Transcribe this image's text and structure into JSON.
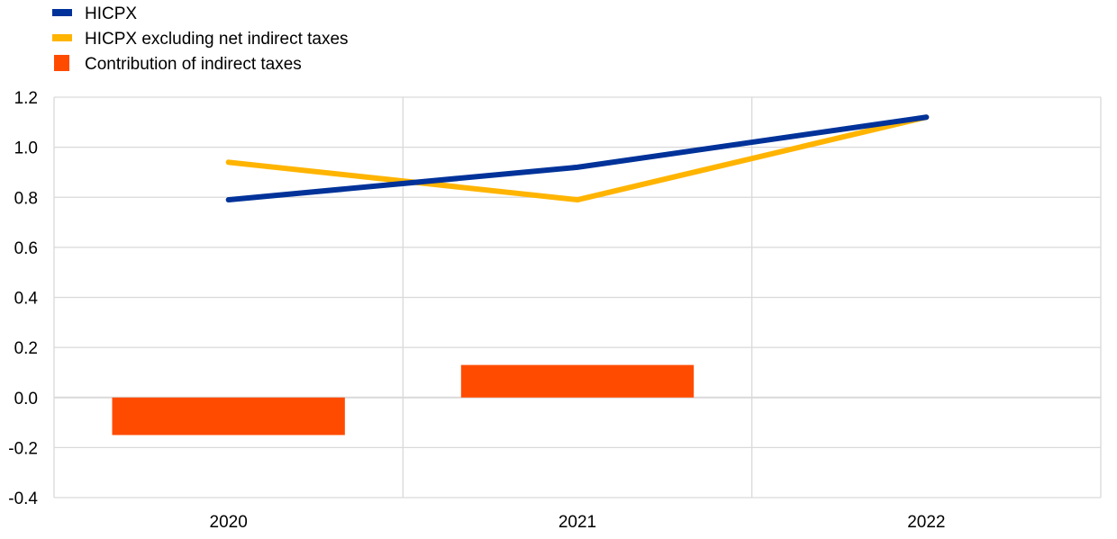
{
  "chart_data": {
    "type": "bar",
    "title": "",
    "xlabel": "",
    "ylabel": "",
    "categories": [
      "2020",
      "2021",
      "2022"
    ],
    "ylim": [
      -0.4,
      1.2
    ],
    "yticks": [
      1.2,
      1.0,
      0.8,
      0.6,
      0.4,
      0.2,
      0.0,
      -0.2,
      -0.4
    ],
    "ytick_labels": [
      "1.2",
      "1.0",
      "0.8",
      "0.6",
      "0.4",
      "0.2",
      "0.0",
      "-0.2",
      "-0.4"
    ],
    "grid": true,
    "legend_position": "top-left",
    "series": [
      {
        "name": "HICPX",
        "type": "line",
        "color": "#003299",
        "values": [
          0.79,
          0.92,
          1.12
        ]
      },
      {
        "name": "HICPX excluding net indirect taxes",
        "type": "line",
        "color": "#FFB400",
        "values": [
          0.94,
          0.79,
          1.12
        ]
      },
      {
        "name": "Contribution of indirect taxes",
        "type": "bar",
        "color": "#FF4B00",
        "values": [
          -0.15,
          0.13,
          0.0
        ]
      }
    ]
  }
}
